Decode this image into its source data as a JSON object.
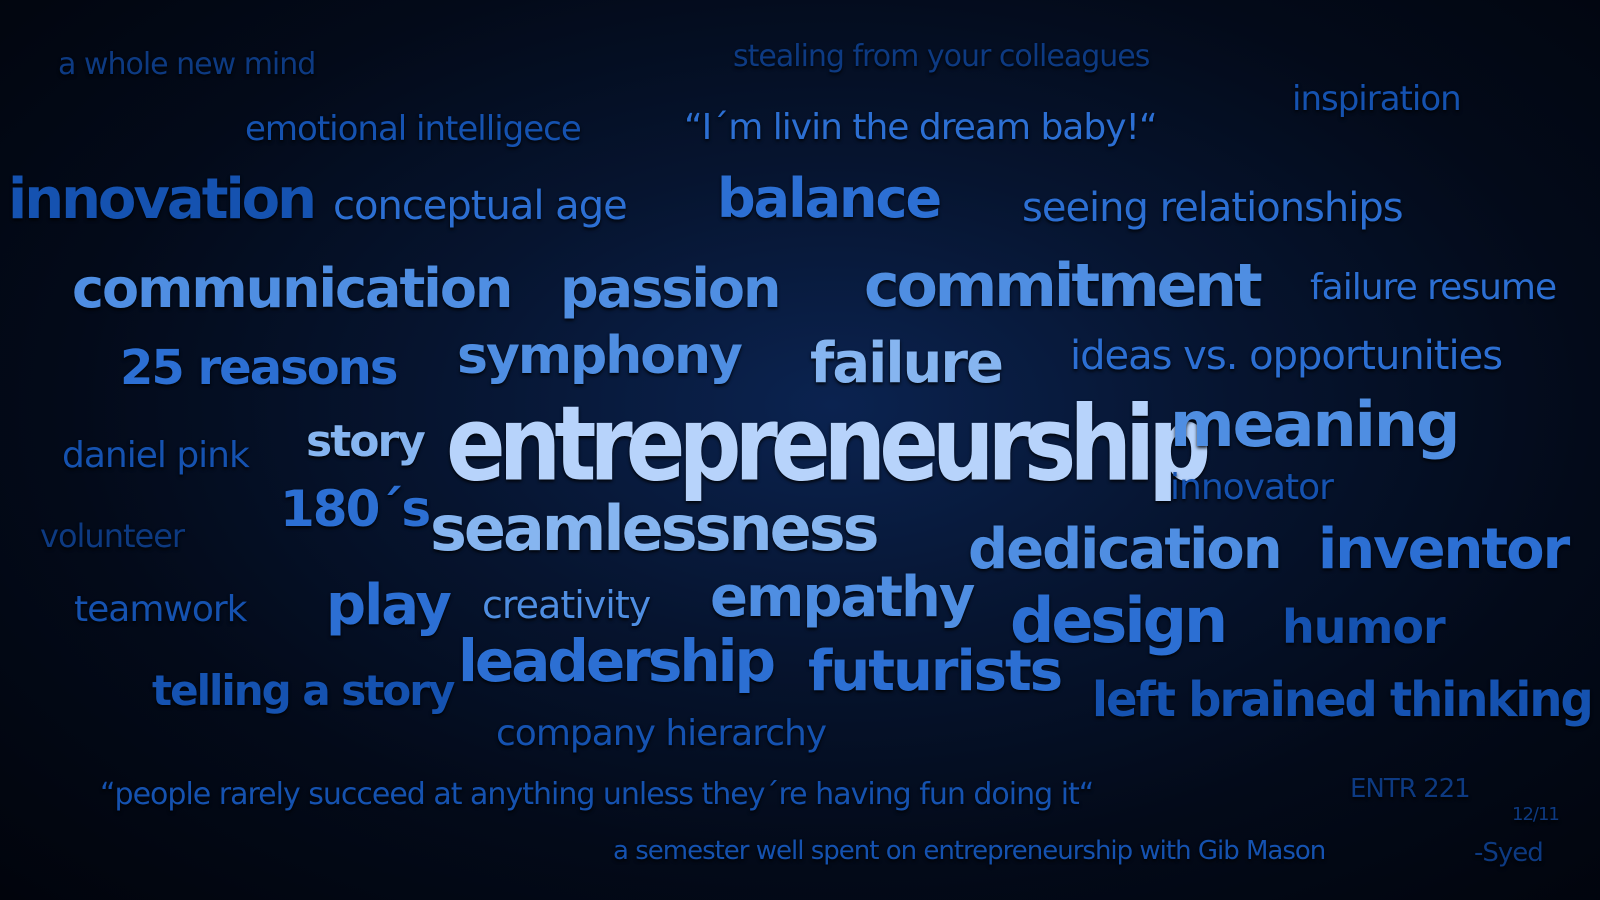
{
  "words": {
    "a_whole_new_mind": "a whole new mind",
    "stealing": "stealing from your colleagues",
    "inspiration": "inspiration",
    "emotional_intelligence": "emotional intelligece",
    "livin_the_dream": "“I´m livin the dream baby!“",
    "innovation": "innovation",
    "conceptual_age": "conceptual age",
    "balance": "balance",
    "seeing_relationships": "seeing relationships",
    "communication": "communication",
    "passion": "passion",
    "commitment": "commitment",
    "failure_resume": "failure resume",
    "reasons_25": "25 reasons",
    "symphony": "symphony",
    "failure": "failure",
    "ideas_vs_opportunities": "ideas vs. opportunities",
    "daniel_pink": "daniel pink",
    "story": "story",
    "entrepreneurship": "entrepreneurship",
    "meaning": "meaning",
    "innovator": "innovator",
    "one_eighties": "180´s",
    "volunteer": "volunteer",
    "seamlessness": "seamlessness",
    "dedication": "dedication",
    "inventor": "inventor",
    "teamwork": "teamwork",
    "play": "play",
    "creativity": "creativity",
    "empathy": "empathy",
    "design": "design",
    "humor": "humor",
    "leadership": "leadership",
    "futurists": "futurists",
    "telling_a_story": "telling a story",
    "left_brained_thinking": "left brained thinking",
    "company_hierarchy": "company hierarchy",
    "fun_quote": "“people rarely succeed at anything unless they´re having fun doing it“",
    "course": "ENTR 221",
    "date": "12/11",
    "semester": "a semester well spent on entrepreneurship with Gib Mason",
    "signature": "-Syed"
  }
}
